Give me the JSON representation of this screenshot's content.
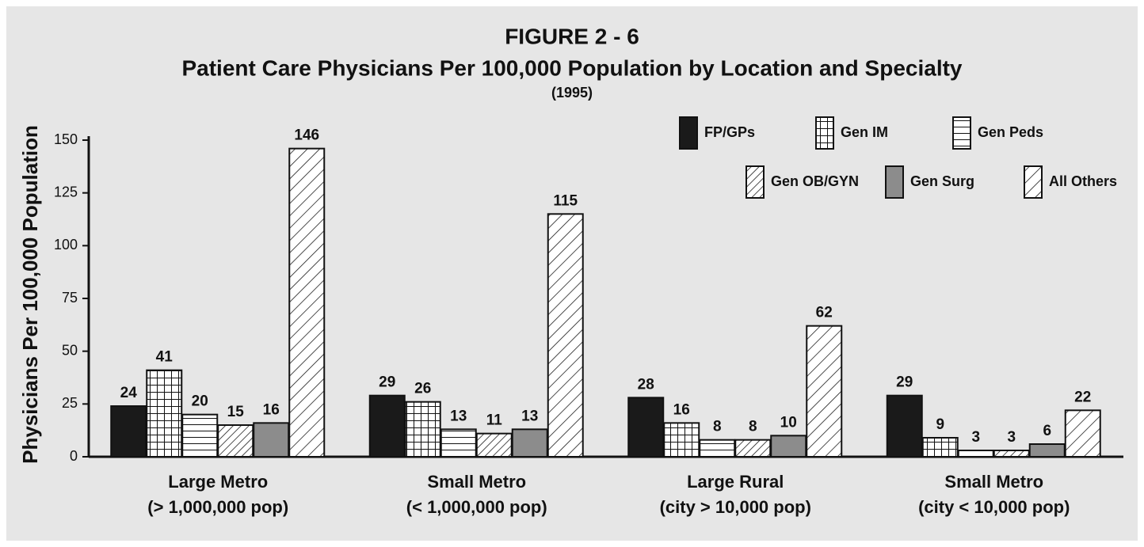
{
  "chart_data": {
    "type": "bar",
    "title": "FIGURE 2 - 6",
    "subtitle": "Patient Care Physicians Per 100,000 Population by Location and Specialty",
    "note": "(1995)",
    "y_label": "Physicians Per 100,000 Population",
    "categories": [
      [
        "Large Metro",
        "(> 1,000,000 pop)"
      ],
      [
        "Small Metro",
        "(< 1,000,000 pop)"
      ],
      [
        "Large Rural",
        "(city > 10,000 pop)"
      ],
      [
        "Small Metro",
        "(city < 10,000 pop)"
      ]
    ],
    "series": [
      {
        "name": "FP/GPs",
        "color": "#1a1a1a",
        "pattern": "solid",
        "values": [
          24,
          29,
          28,
          29
        ]
      },
      {
        "name": "Gen IM",
        "color": "#ffffff",
        "pattern": "grid",
        "values": [
          41,
          26,
          16,
          9
        ]
      },
      {
        "name": "Gen Peds",
        "color": "#ffffff",
        "pattern": "hlines",
        "values": [
          20,
          13,
          8,
          3
        ]
      },
      {
        "name": "Gen OB/GYN",
        "color": "#ffffff",
        "pattern": "dense-diagonal",
        "values": [
          15,
          11,
          8,
          3
        ]
      },
      {
        "name": "Gen Surg",
        "color": "#8c8c8c",
        "pattern": "solid",
        "values": [
          16,
          13,
          10,
          6
        ]
      },
      {
        "name": "All Others",
        "color": "#ffffff",
        "pattern": "diagonal",
        "values": [
          146,
          115,
          62,
          22
        ]
      }
    ],
    "ylim": [
      0,
      150
    ],
    "yticks": [
      0,
      25,
      50,
      75,
      100,
      125,
      150
    ],
    "grid": false
  }
}
